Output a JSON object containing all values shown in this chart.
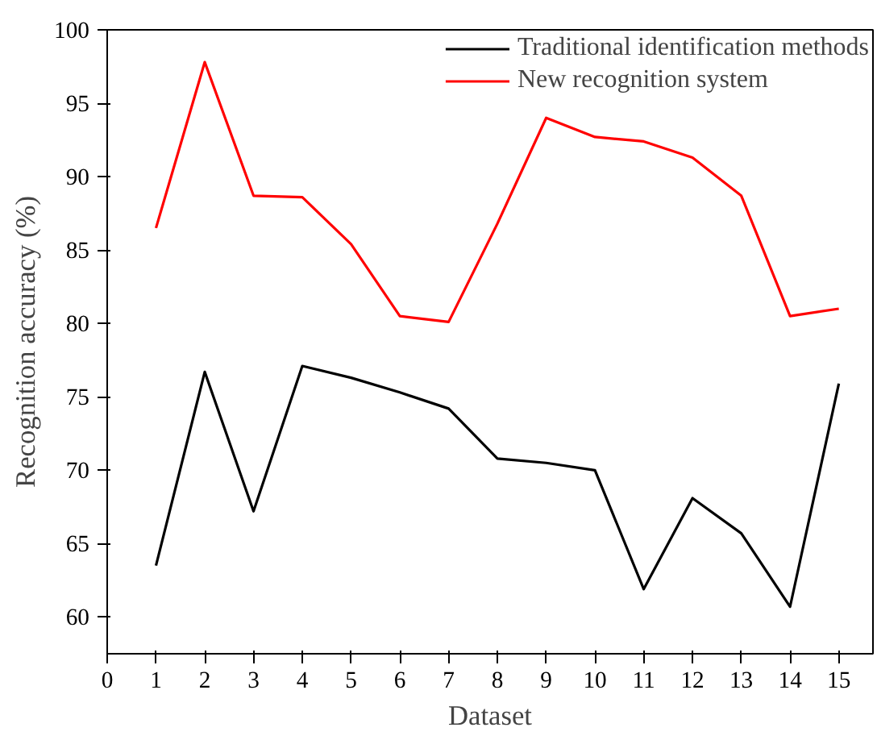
{
  "chart_data": {
    "type": "line",
    "xlabel": "Dataset",
    "ylabel": "Recognition accuracy (%)",
    "x": [
      1,
      2,
      3,
      4,
      5,
      6,
      7,
      8,
      9,
      10,
      11,
      12,
      13,
      14,
      15
    ],
    "series": [
      {
        "name": "Traditional identification methods",
        "color": "#000000",
        "values": [
          63.5,
          76.7,
          67.2,
          77.1,
          76.3,
          75.3,
          74.2,
          70.8,
          70.5,
          70.0,
          61.9,
          68.1,
          65.7,
          60.7,
          75.9
        ]
      },
      {
        "name": "New recognition system",
        "color": "#ff0000",
        "values": [
          86.5,
          97.8,
          88.7,
          88.6,
          85.4,
          80.5,
          80.1,
          86.8,
          94.0,
          92.7,
          92.4,
          91.3,
          88.7,
          80.5,
          81.0
        ]
      }
    ],
    "xlim": [
      0,
      15.7
    ],
    "xticks": [
      0,
      1,
      2,
      3,
      4,
      5,
      6,
      7,
      8,
      9,
      10,
      11,
      12,
      13,
      14,
      15
    ],
    "ylim": [
      57.5,
      100
    ],
    "yticks": [
      60,
      65,
      70,
      75,
      80,
      85,
      90,
      95,
      100
    ],
    "grid": false,
    "legend": "top right",
    "marker": "none",
    "line_style": "solid"
  }
}
